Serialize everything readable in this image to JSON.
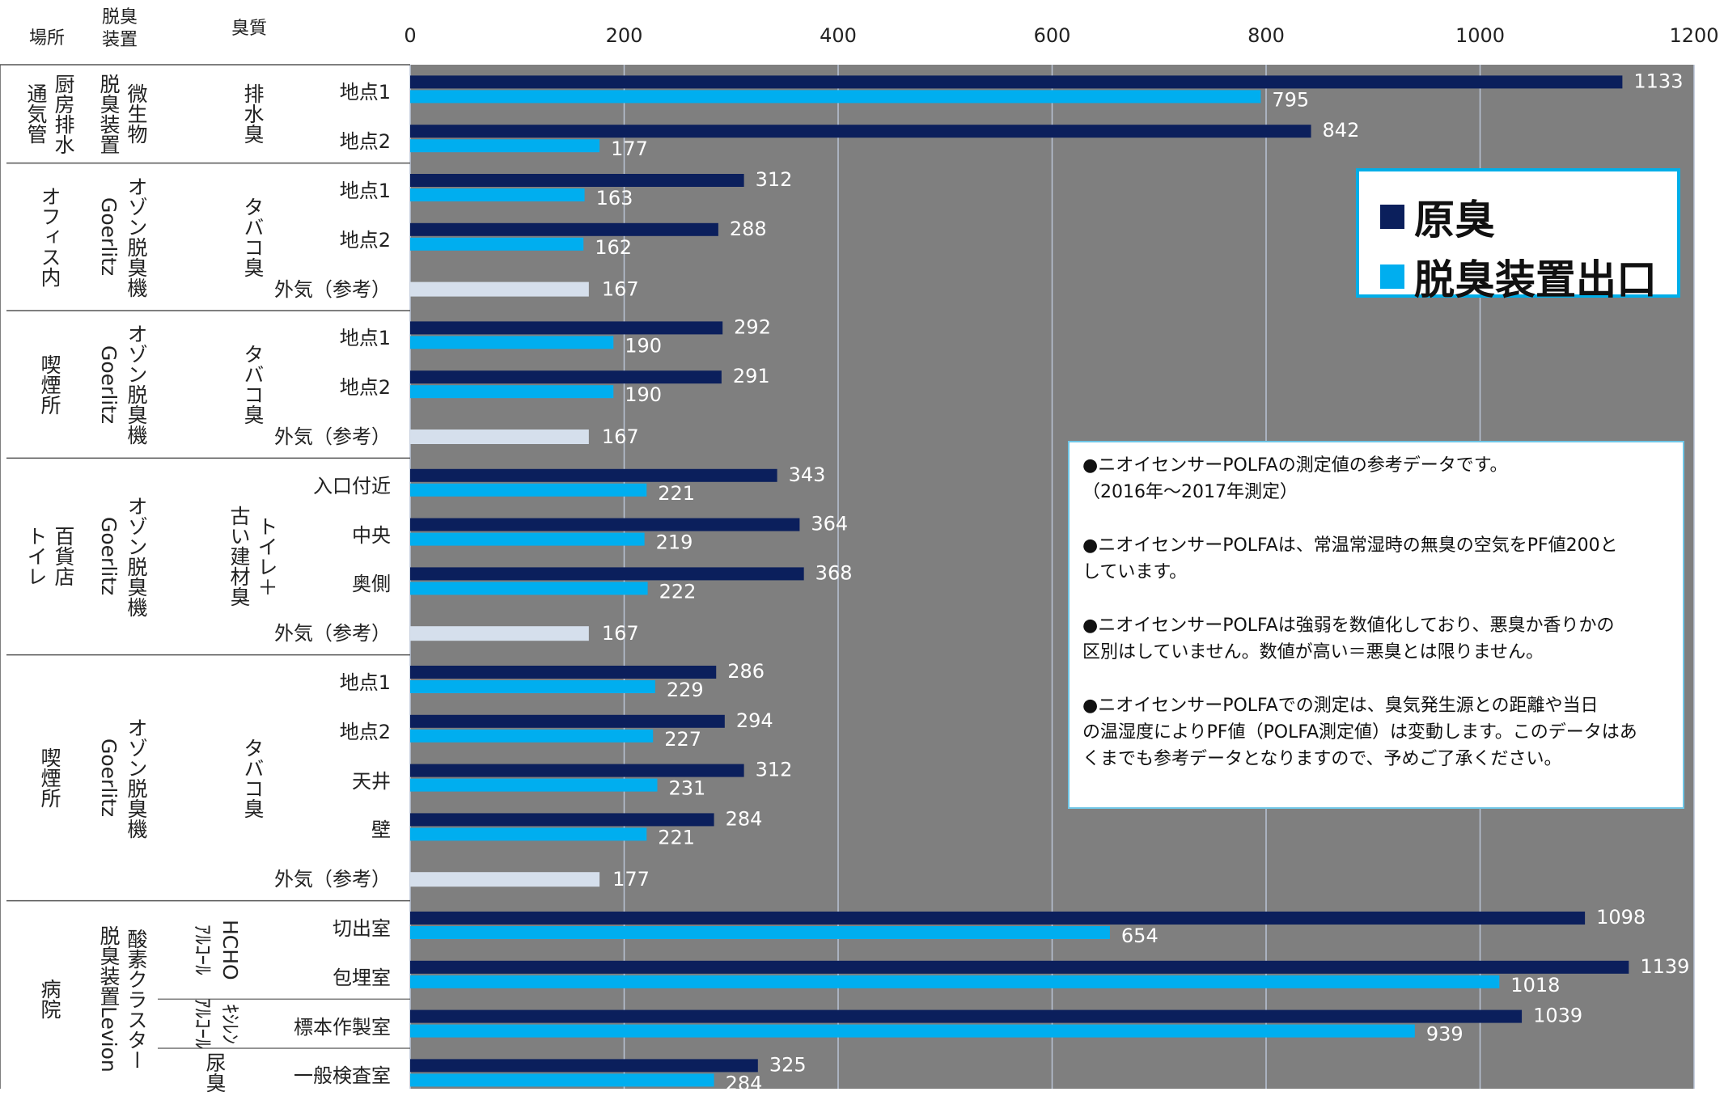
{
  "header": {
    "location": "場所",
    "device": "脱臭\n装置",
    "odor": "臭質"
  },
  "groups": [
    {
      "location": "厨房排水\n通気管",
      "device": "微生物\n脱臭装置",
      "odor": "排水臭"
    },
    {
      "location": "オフィス内",
      "device": "オゾン脱臭機\nGoerlitz",
      "odor": "タバコ臭"
    },
    {
      "location": "喫煙所",
      "device": "オゾン脱臭機\nGoerlitz",
      "odor": "タバコ臭"
    },
    {
      "location": "百貨店\nトイレ",
      "device": "オゾン脱臭機\nGoerlitz",
      "odor": "トイレ＋\n古い建材臭"
    },
    {
      "location": "喫煙所",
      "device": "オゾン脱臭機\nGoerlitz",
      "odor": "タバコ臭"
    },
    {
      "location": "病院",
      "device": "酸素クラスター\n脱臭装置Levion",
      "odor": ""
    }
  ],
  "hospital_odors": [
    "HCHO\nｱﾙｺｰﾙ",
    "ｷｼﾚﾝ\nｱﾙｺｰﾙ",
    "尿臭"
  ],
  "chart_data": {
    "type": "bar",
    "orientation": "horizontal",
    "xlim": [
      0,
      1200
    ],
    "ticks": [
      0,
      200,
      400,
      600,
      800,
      1000,
      1200
    ],
    "categories": [
      "地点1",
      "地点2",
      "地点1",
      "地点2",
      "外気（参考）",
      "地点1",
      "地点2",
      "外気（参考）",
      "入口付近",
      "中央",
      "奥側",
      "外気（参考）",
      "地点1",
      "地点2",
      "天井",
      "壁",
      "外気（参考）",
      "切出室",
      "包埋室",
      "標本作製室",
      "一般検査室"
    ],
    "series": [
      {
        "name": "原臭",
        "color": "#0b1f5c",
        "values": [
          1133,
          842,
          312,
          288,
          null,
          292,
          291,
          null,
          343,
          364,
          368,
          null,
          286,
          294,
          312,
          284,
          null,
          1098,
          1139,
          1039,
          325
        ]
      },
      {
        "name": "脱臭装置出口",
        "color": "#00aeef",
        "values": [
          795,
          177,
          163,
          162,
          null,
          190,
          190,
          null,
          221,
          219,
          222,
          null,
          229,
          227,
          231,
          221,
          null,
          654,
          1018,
          939,
          284
        ]
      },
      {
        "name": "外気（参考）",
        "color": "#d5dfec",
        "values": [
          null,
          null,
          null,
          null,
          167,
          null,
          null,
          167,
          null,
          null,
          null,
          167,
          null,
          null,
          null,
          null,
          177,
          null,
          null,
          null,
          null
        ]
      }
    ],
    "grid": true,
    "legend_position": "top-right"
  },
  "legend": [
    {
      "label": "原臭",
      "color": "#0b1f5c"
    },
    {
      "label": "脱臭装置出口",
      "color": "#00aeef"
    }
  ],
  "note": {
    "lines": [
      "●ニオイセンサーPOLFAの測定値の参考データです。",
      "（2016年～2017年測定）",
      "",
      "●ニオイセンサーPOLFAは、常温常湿時の無臭の空気をPF値200と",
      "しています。",
      "",
      "●ニオイセンサーPOLFAは強弱を数値化しており、悪臭か香りかの",
      "区別はしていません。数値が高い＝悪臭とは限りません。",
      "",
      "●ニオイセンサーPOLFAでの測定は、臭気発生源との距離や当日",
      "の温湿度によりPF値（POLFA測定値）は変動します。このデータはあ",
      "くまでも参考データとなりますので、予めご了承ください。"
    ]
  }
}
